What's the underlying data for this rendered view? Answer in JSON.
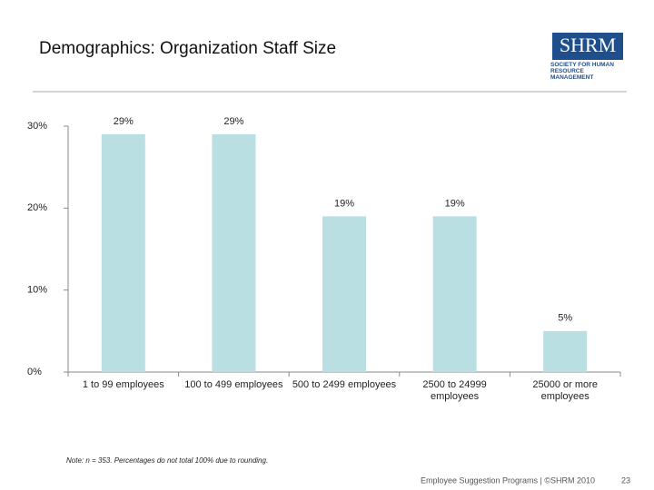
{
  "chart_data": {
    "type": "bar",
    "title": "Demographics: Organization Staff Size",
    "categories": [
      "1 to 99 employees",
      "100 to 499 employees",
      "500 to 2499 employees",
      "2500 to 24999 employees",
      "25000 or more employees"
    ],
    "values": [
      29,
      29,
      19,
      19,
      5
    ],
    "value_labels": [
      "29%",
      "29%",
      "19%",
      "19%",
      "5%"
    ],
    "color": "#b9dfe3",
    "ylim": [
      0,
      30
    ],
    "yticks": [
      {
        "value": 0,
        "label": "0%"
      },
      {
        "value": 10,
        "label": "10%"
      },
      {
        "value": 20,
        "label": "20%"
      },
      {
        "value": 30,
        "label": "30%"
      }
    ],
    "grid": false,
    "note": "Note: n = 353. Percentages do not total 100% due to rounding."
  },
  "logo": {
    "mark": "SHRM",
    "text": "SOCIETY FOR HUMAN RESOURCE MANAGEMENT"
  },
  "footer": "Employee Suggestion Programs | ©SHRM 2010",
  "page_number": "23"
}
